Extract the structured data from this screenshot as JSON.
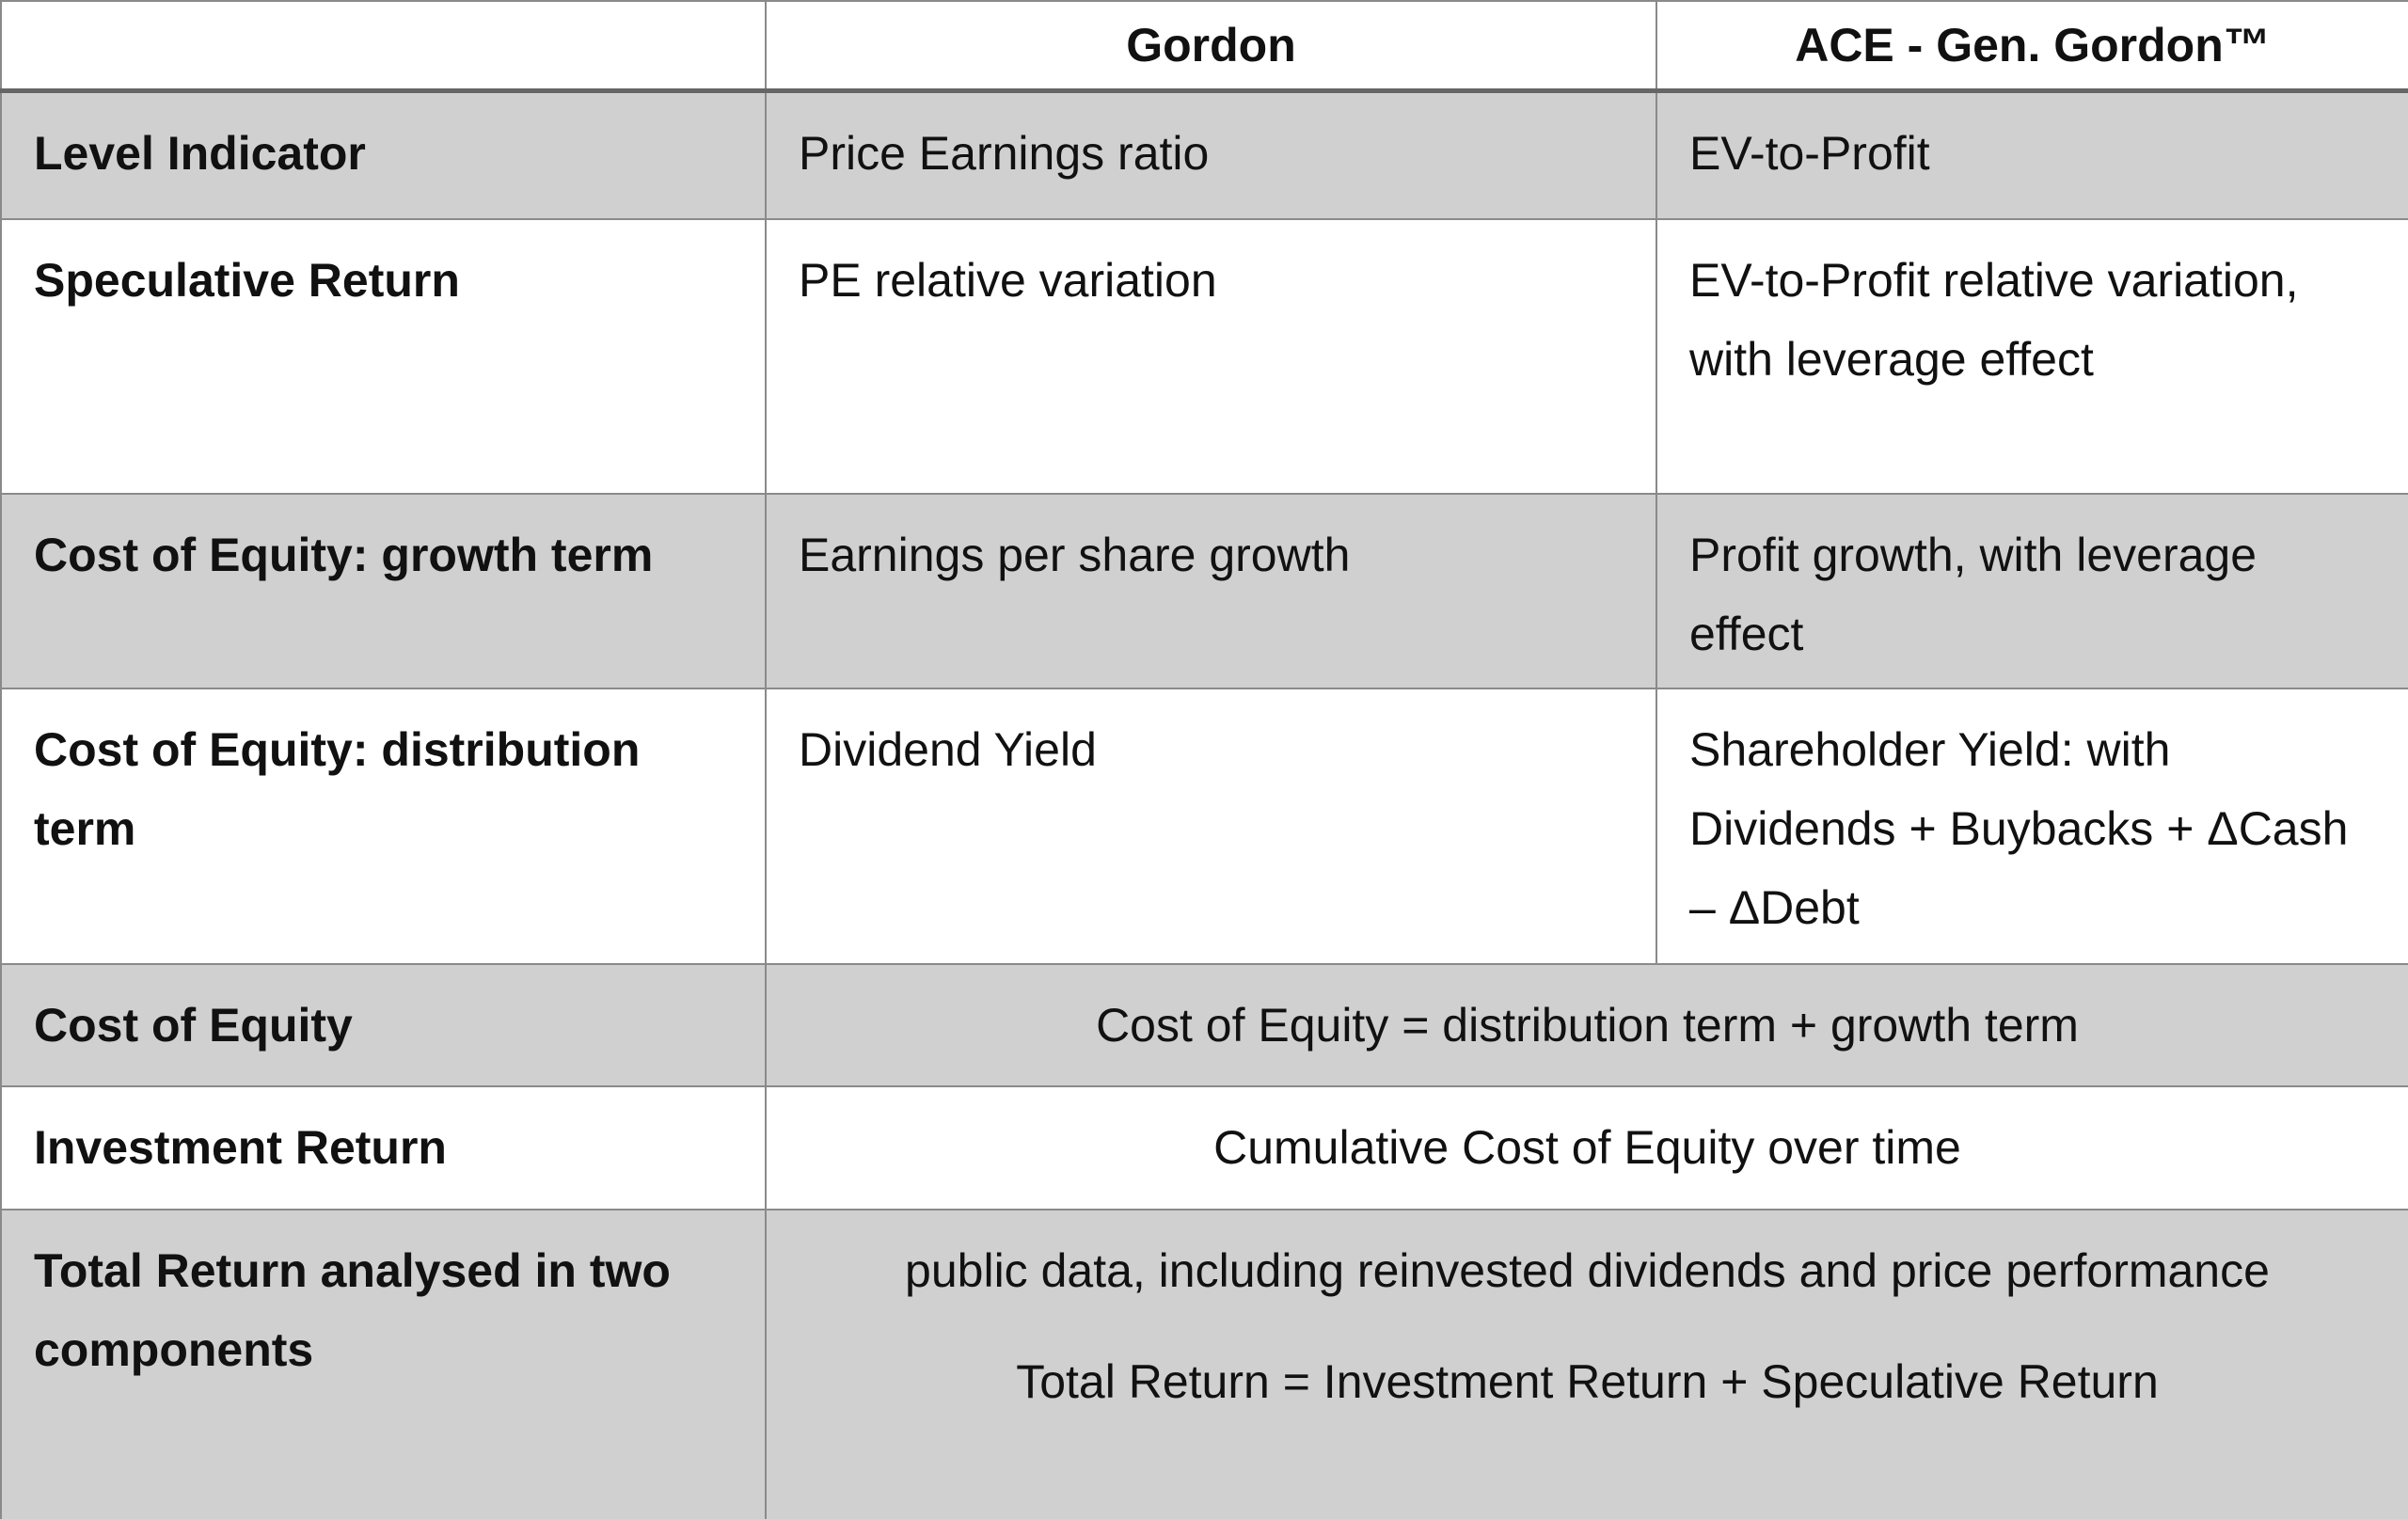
{
  "header": {
    "columns": [
      "Gordon",
      "ACE - Gen. Gordon™"
    ]
  },
  "rows": [
    {
      "label": "Level Indicator",
      "cells": [
        "Price Earnings ratio",
        "EV-to-Profit"
      ]
    },
    {
      "label": "Speculative Return",
      "cells": [
        "PE relative variation",
        "EV-to-Profit relative variation, with leverage effect"
      ]
    },
    {
      "label": "Cost of Equity: growth term",
      "cells": [
        "Earnings per share growth",
        "Profit growth, with leverage effect"
      ]
    },
    {
      "label": "Cost of Equity: distribution term",
      "cells": [
        "Dividend Yield",
        "Shareholder Yield: with Dividends + Buybacks + ΔCash – ΔDebt"
      ]
    },
    {
      "label": "Cost of Equity",
      "merged": [
        "Cost of Equity = distribution term + growth term"
      ]
    },
    {
      "label": "Investment Return",
      "merged": [
        "Cumulative Cost of Equity over time"
      ]
    },
    {
      "label": "Total Return analysed in two components",
      "merged": [
        "public data, including reinvested dividends and price performance",
        "Total Return = Investment Return + Speculative Return"
      ]
    }
  ]
}
